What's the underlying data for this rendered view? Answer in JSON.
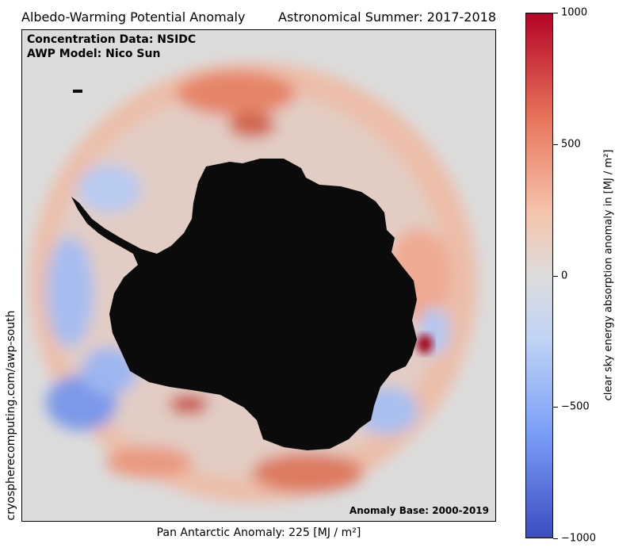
{
  "titles": {
    "left": "Albedo-Warming Potential Anomaly",
    "right": "Astronomical Summer: 2017-2018"
  },
  "info": {
    "concentration": "Concentration Data: NSIDC",
    "model": "AWP Model: Nico Sun",
    "anomaly_base": "Anomaly Base: 2000-2019",
    "website": "cryospherecomputing.com/awp-south"
  },
  "footer": {
    "xlabel": "Pan Antarctic Anomaly: 225 [MJ / m²]"
  },
  "colorbar": {
    "label": "clear sky energy absorption anomaly in [MJ / m²]",
    "ticks": [
      "1000",
      "500",
      "0",
      "−500",
      "−1000"
    ]
  },
  "chart_data": {
    "type": "heatmap",
    "title": "Albedo-Warming Potential Anomaly",
    "subtitle": "Astronomical Summer: 2017-2018",
    "xlabel": "Pan Antarctic Anomaly: 225 [MJ / m²]",
    "colorbar_label": "clear sky energy absorption anomaly in [MJ / m²]",
    "colorbar_range": [
      -1000,
      1000
    ],
    "colorbar_ticks": [
      1000,
      500,
      0,
      -500,
      -1000
    ],
    "colormap": "coolwarm",
    "pan_antarctic_anomaly": 225,
    "colors": {
      "positive": "#b40426",
      "zero": "#dddcdc",
      "negative": "#3b4cc0",
      "land": "#0b0b0b"
    }
  }
}
